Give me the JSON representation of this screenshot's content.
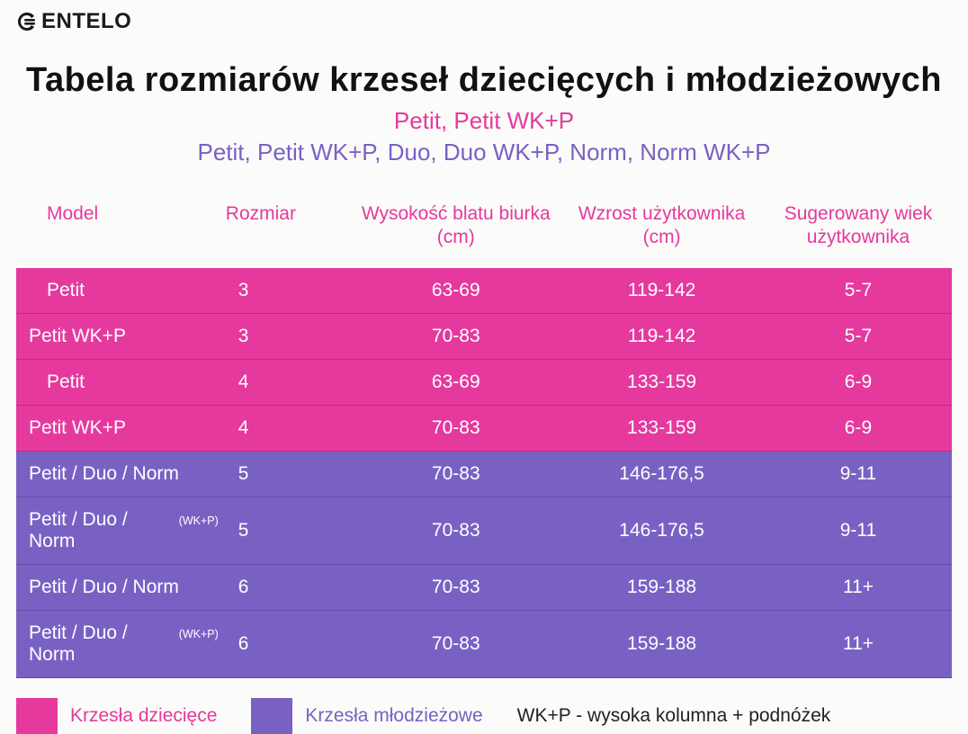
{
  "brand": "ENTELO",
  "title": "Tabela rozmiarów krzeseł dziecięcych i młodzieżowych",
  "subtitle_line1": "Petit, Petit WK+P",
  "subtitle_line2": "Petit, Petit WK+P, Duo, Duo WK+P, Norm, Norm WK+P",
  "colors": {
    "pink": "#e5399e",
    "purple": "#7961c4",
    "background": "#fbfbf9",
    "text_dark": "#111111"
  },
  "table": {
    "type": "table",
    "column_widths_pct": [
      22,
      14,
      22,
      22,
      20
    ],
    "header_color": "#e5399e",
    "header_fontsize": 21,
    "body_fontsize": 21,
    "columns": [
      "Model",
      "Rozmiar",
      "Wysokość blatu biurka (cm)",
      "Wzrost użytkownika (cm)",
      "Sugerowany wiek użytkownika"
    ],
    "rows": [
      {
        "model": "Petit",
        "model_suffix": "",
        "model_indent": 34,
        "rozmiar": "3",
        "blat": "63-69",
        "wzrost": "119-142",
        "wiek": "5-7",
        "color": "pink"
      },
      {
        "model": "Petit WK+P",
        "model_suffix": "",
        "model_indent": 14,
        "rozmiar": "3",
        "blat": "70-83",
        "wzrost": "119-142",
        "wiek": "5-7",
        "color": "pink"
      },
      {
        "model": "Petit",
        "model_suffix": "",
        "model_indent": 34,
        "rozmiar": "4",
        "blat": "63-69",
        "wzrost": "133-159",
        "wiek": "6-9",
        "color": "pink"
      },
      {
        "model": "Petit WK+P",
        "model_suffix": "",
        "model_indent": 14,
        "rozmiar": "4",
        "blat": "70-83",
        "wzrost": "133-159",
        "wiek": "6-9",
        "color": "pink"
      },
      {
        "model": "Petit / Duo / Norm",
        "model_suffix": "",
        "model_indent": 14,
        "rozmiar": "5",
        "blat": "70-83",
        "wzrost": "146-176,5",
        "wiek": "9-11",
        "color": "purple"
      },
      {
        "model": "Petit / Duo / Norm",
        "model_suffix": "(WK+P)",
        "model_indent": 14,
        "rozmiar": "5",
        "blat": "70-83",
        "wzrost": "146-176,5",
        "wiek": "9-11",
        "color": "purple"
      },
      {
        "model": "Petit / Duo / Norm",
        "model_suffix": "",
        "model_indent": 14,
        "rozmiar": "6",
        "blat": "70-83",
        "wzrost": "159-188",
        "wiek": "11+",
        "color": "purple"
      },
      {
        "model": "Petit / Duo / Norm",
        "model_suffix": "(WK+P)",
        "model_indent": 14,
        "rozmiar": "6",
        "blat": "70-83",
        "wzrost": "159-188",
        "wiek": "11+",
        "color": "purple"
      }
    ]
  },
  "legend": {
    "pink_label": "Krzesła dziecięce",
    "purple_label": "Krzesła młodzieżowe",
    "note": "WK+P - wysoka kolumna + podnóżek"
  }
}
